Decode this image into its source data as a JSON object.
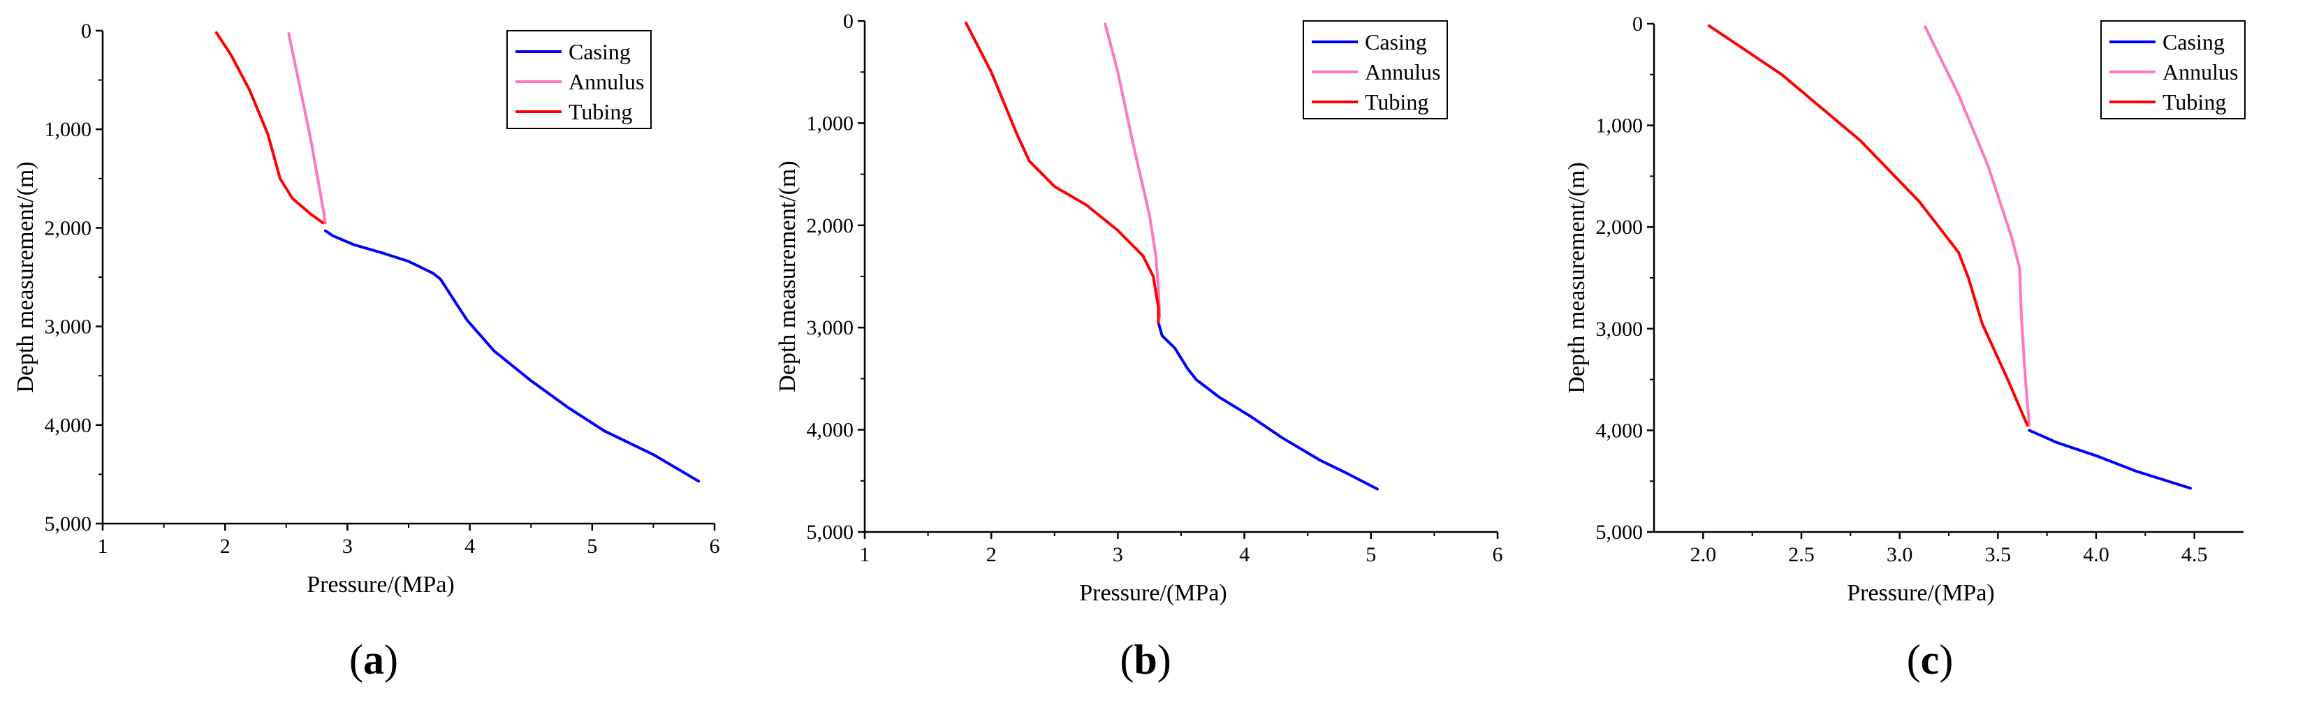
{
  "figure": {
    "colors": {
      "casing": "#0000ff",
      "annulus": "#ff77c0",
      "tubing": "#ff0000",
      "axis": "#000000"
    }
  },
  "chart_data": [
    {
      "type": "line",
      "panel_label": "a",
      "title": "",
      "xlabel": "Pressure/(MPa)",
      "ylabel": "Depth measurement/(m)",
      "xlim": [
        1,
        6
      ],
      "ylim": [
        0,
        5000
      ],
      "y_inverted": true,
      "xticks": [
        "1",
        "2",
        "3",
        "4",
        "5",
        "6"
      ],
      "yticks": [
        "0",
        "1,000",
        "2,000",
        "3,000",
        "4,000",
        "5,000"
      ],
      "legend": {
        "position": "top-right",
        "entries": [
          "Casing",
          "Annulus",
          "Tubing"
        ]
      },
      "series": [
        {
          "name": "Casing",
          "color": "#0000ff",
          "points": [
            [
              2.82,
              2030
            ],
            [
              2.88,
              2080
            ],
            [
              3.05,
              2170
            ],
            [
              3.3,
              2260
            ],
            [
              3.5,
              2340
            ],
            [
              3.7,
              2460
            ],
            [
              3.76,
              2520
            ],
            [
              3.88,
              2750
            ],
            [
              3.98,
              2940
            ],
            [
              4.2,
              3250
            ],
            [
              4.5,
              3550
            ],
            [
              4.8,
              3820
            ],
            [
              5.1,
              4060
            ],
            [
              5.5,
              4300
            ],
            [
              5.87,
              4570
            ]
          ]
        },
        {
          "name": "Annulus",
          "color": "#ff77c0",
          "points": [
            [
              2.52,
              30
            ],
            [
              2.6,
              500
            ],
            [
              2.7,
              1100
            ],
            [
              2.8,
              1800
            ],
            [
              2.82,
              1950
            ]
          ]
        },
        {
          "name": "Tubing",
          "color": "#ff0000",
          "points": [
            [
              1.93,
              20
            ],
            [
              2.05,
              250
            ],
            [
              2.2,
              600
            ],
            [
              2.35,
              1050
            ],
            [
              2.45,
              1500
            ],
            [
              2.55,
              1700
            ],
            [
              2.7,
              1860
            ],
            [
              2.8,
              1950
            ]
          ]
        }
      ]
    },
    {
      "type": "line",
      "panel_label": "b",
      "title": "",
      "xlabel": "Pressure/(MPa)",
      "ylabel": "Depth measurement/(m)",
      "xlim": [
        1,
        6
      ],
      "ylim": [
        0,
        5000
      ],
      "y_inverted": true,
      "xticks": [
        "1",
        "2",
        "3",
        "4",
        "5",
        "6"
      ],
      "yticks": [
        "0",
        "1,000",
        "2,000",
        "3,000",
        "4,000",
        "5,000"
      ],
      "legend": {
        "position": "top-right",
        "entries": [
          "Casing",
          "Annulus",
          "Tubing"
        ]
      },
      "series": [
        {
          "name": "Casing",
          "color": "#0000ff",
          "points": [
            [
              3.32,
              2950
            ],
            [
              3.35,
              3080
            ],
            [
              3.45,
              3200
            ],
            [
              3.55,
              3400
            ],
            [
              3.62,
              3510
            ],
            [
              3.8,
              3680
            ],
            [
              4.05,
              3870
            ],
            [
              4.3,
              4080
            ],
            [
              4.6,
              4300
            ],
            [
              4.8,
              4420
            ],
            [
              5.05,
              4580
            ]
          ]
        },
        {
          "name": "Annulus",
          "color": "#ff77c0",
          "points": [
            [
              2.9,
              30
            ],
            [
              3.0,
              500
            ],
            [
              3.12,
              1200
            ],
            [
              3.25,
              1900
            ],
            [
              3.3,
              2300
            ],
            [
              3.32,
              2600
            ],
            [
              3.33,
              2900
            ]
          ]
        },
        {
          "name": "Tubing",
          "color": "#ff0000",
          "points": [
            [
              1.8,
              20
            ],
            [
              2.0,
              500
            ],
            [
              2.2,
              1100
            ],
            [
              2.3,
              1370
            ],
            [
              2.5,
              1620
            ],
            [
              2.75,
              1800
            ],
            [
              3.0,
              2050
            ],
            [
              3.2,
              2300
            ],
            [
              3.28,
              2500
            ],
            [
              3.32,
              2800
            ],
            [
              3.32,
              2950
            ]
          ]
        }
      ]
    },
    {
      "type": "line",
      "panel_label": "c",
      "title": "",
      "xlabel": "Pressure/(MPa)",
      "ylabel": "Depth measurement/(m)",
      "xlim": [
        1.75,
        4.75
      ],
      "ylim": [
        0,
        5000
      ],
      "y_inverted": true,
      "xticks": [
        "2.0",
        "2.5",
        "3.0",
        "3.5",
        "4.0",
        "4.5"
      ],
      "yticks": [
        "0",
        "1,000",
        "2,000",
        "3,000",
        "4,000",
        "5,000"
      ],
      "legend": {
        "position": "top-right",
        "entries": [
          "Casing",
          "Annulus",
          "Tubing"
        ]
      },
      "series": [
        {
          "name": "Casing",
          "color": "#0000ff",
          "points": [
            [
              3.66,
              4000
            ],
            [
              3.8,
              4120
            ],
            [
              4.0,
              4250
            ],
            [
              4.2,
              4400
            ],
            [
              4.48,
              4570
            ]
          ]
        },
        {
          "name": "Annulus",
          "color": "#ff77c0",
          "points": [
            [
              3.13,
              30
            ],
            [
              3.3,
              700
            ],
            [
              3.45,
              1400
            ],
            [
              3.57,
              2100
            ],
            [
              3.61,
              2400
            ],
            [
              3.62,
              2900
            ],
            [
              3.64,
              3500
            ],
            [
              3.66,
              3950
            ]
          ]
        },
        {
          "name": "Tubing",
          "color": "#ff0000",
          "points": [
            [
              2.03,
              20
            ],
            [
              2.4,
              500
            ],
            [
              2.8,
              1150
            ],
            [
              3.1,
              1750
            ],
            [
              3.3,
              2250
            ],
            [
              3.35,
              2500
            ],
            [
              3.42,
              2950
            ],
            [
              3.55,
              3500
            ],
            [
              3.65,
              3950
            ]
          ]
        }
      ]
    }
  ]
}
